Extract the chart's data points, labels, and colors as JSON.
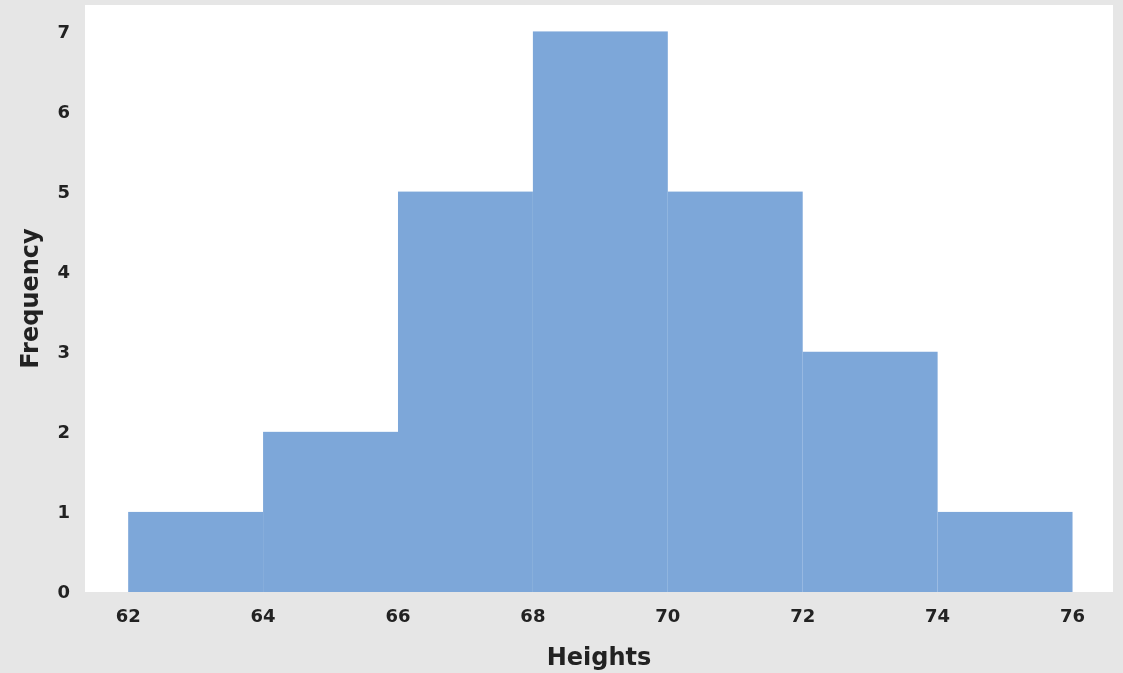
{
  "chart_data": {
    "type": "histogram",
    "xlabel": "Heights",
    "ylabel": "Frequency",
    "bins": [
      62,
      64,
      66,
      68,
      70,
      72,
      74,
      76
    ],
    "values": [
      1,
      2,
      5,
      7,
      5,
      3,
      1
    ],
    "color": "#7da7d9",
    "xlim": [
      61.36,
      76.6
    ],
    "xticks": [
      62,
      64,
      66,
      68,
      70,
      72,
      74,
      76
    ],
    "ylim": [
      0,
      7.33
    ],
    "yticks": [
      0,
      1,
      2,
      3,
      4,
      5,
      6,
      7
    ],
    "grid": false
  }
}
